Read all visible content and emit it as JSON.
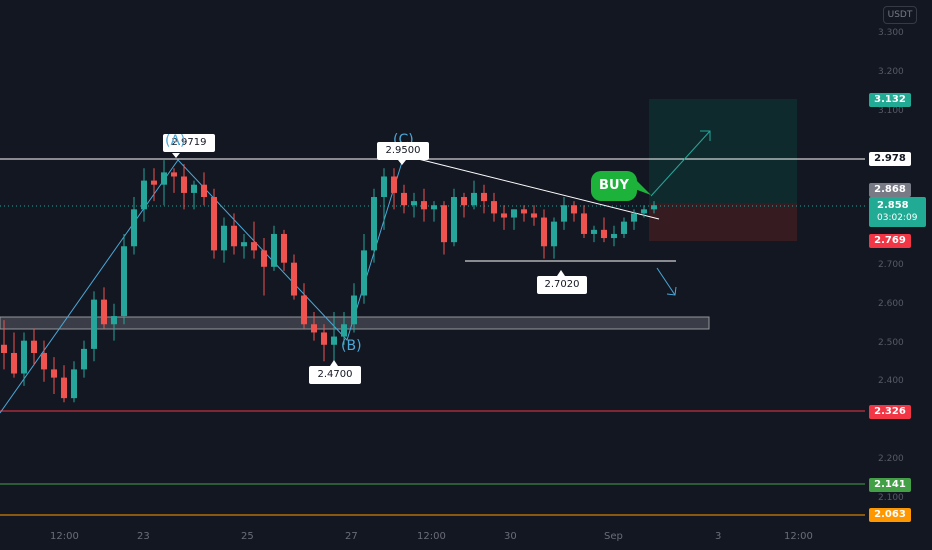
{
  "currency": "USDT",
  "y_axis_labels": [
    "3.300",
    "3.200",
    "3.100",
    "2.700",
    "2.600",
    "2.500",
    "2.400",
    "2.200",
    "2.100"
  ],
  "x_axis_labels": [
    "12:00",
    "23",
    "25",
    "27",
    "12:00",
    "30",
    "Sep",
    "3",
    "12:00"
  ],
  "price_chips": {
    "target": {
      "value": "3.132",
      "color": "#22ab94"
    },
    "resistance": {
      "value": "2.978",
      "color": "#ffffff"
    },
    "entry": {
      "value": "2.868",
      "color": "#787b86"
    },
    "current": {
      "value": "2.858",
      "countdown": "03:02:09",
      "color": "#22ab94"
    },
    "stop": {
      "value": "2.769",
      "color": "#f23645"
    },
    "support_red": {
      "value": "2.326",
      "color": "#f23645"
    },
    "support_green": {
      "value": "2.141",
      "color": "#43a047"
    },
    "support_orange": {
      "value": "2.063",
      "color": "#ff9800"
    }
  },
  "annotations": {
    "wave_a": "(A)",
    "wave_a_price": "2.9719",
    "wave_b": "(B)",
    "wave_b_price": "2.4700",
    "wave_c": "(C)",
    "wave_c_price": "2.9500",
    "low_price": "2.7020",
    "buy_label": "BUY"
  },
  "colors": {
    "bull": "#26a69a",
    "bear": "#ef5350",
    "background": "#131722"
  },
  "chart_data": {
    "type": "candlestick",
    "y_range": [
      2.02,
      3.36
    ],
    "horizontal_lines": [
      2.978,
      2.326,
      2.141,
      2.063
    ],
    "candles": [
      [
        2.52,
        2.58,
        2.46,
        2.5
      ],
      [
        2.5,
        2.55,
        2.44,
        2.45
      ],
      [
        2.45,
        2.55,
        2.42,
        2.53
      ],
      [
        2.53,
        2.56,
        2.47,
        2.5
      ],
      [
        2.5,
        2.53,
        2.43,
        2.46
      ],
      [
        2.46,
        2.49,
        2.4,
        2.44
      ],
      [
        2.44,
        2.47,
        2.38,
        2.39
      ],
      [
        2.39,
        2.48,
        2.38,
        2.46
      ],
      [
        2.46,
        2.53,
        2.44,
        2.51
      ],
      [
        2.51,
        2.65,
        2.48,
        2.63
      ],
      [
        2.63,
        2.66,
        2.56,
        2.57
      ],
      [
        2.57,
        2.62,
        2.53,
        2.59
      ],
      [
        2.59,
        2.79,
        2.57,
        2.76
      ],
      [
        2.76,
        2.88,
        2.74,
        2.85
      ],
      [
        2.85,
        2.95,
        2.82,
        2.92
      ],
      [
        2.92,
        2.95,
        2.87,
        2.91
      ],
      [
        2.91,
        2.97,
        2.86,
        2.94
      ],
      [
        2.94,
        2.95,
        2.89,
        2.93
      ],
      [
        2.93,
        2.96,
        2.85,
        2.89
      ],
      [
        2.89,
        2.92,
        2.85,
        2.91
      ],
      [
        2.91,
        2.94,
        2.86,
        2.88
      ],
      [
        2.88,
        2.9,
        2.73,
        2.75
      ],
      [
        2.75,
        2.83,
        2.72,
        2.81
      ],
      [
        2.81,
        2.84,
        2.74,
        2.76
      ],
      [
        2.76,
        2.79,
        2.73,
        2.77
      ],
      [
        2.77,
        2.82,
        2.73,
        2.75
      ],
      [
        2.75,
        2.78,
        2.64,
        2.71
      ],
      [
        2.71,
        2.81,
        2.7,
        2.79
      ],
      [
        2.79,
        2.8,
        2.7,
        2.72
      ],
      [
        2.72,
        2.74,
        2.63,
        2.64
      ],
      [
        2.64,
        2.67,
        2.56,
        2.57
      ],
      [
        2.57,
        2.6,
        2.53,
        2.55
      ],
      [
        2.55,
        2.57,
        2.48,
        2.52
      ],
      [
        2.52,
        2.6,
        2.48,
        2.54
      ],
      [
        2.54,
        2.6,
        2.52,
        2.57
      ],
      [
        2.57,
        2.67,
        2.55,
        2.64
      ],
      [
        2.64,
        2.79,
        2.62,
        2.75
      ],
      [
        2.75,
        2.9,
        2.72,
        2.88
      ],
      [
        2.88,
        2.95,
        2.8,
        2.93
      ],
      [
        2.93,
        2.95,
        2.85,
        2.89
      ],
      [
        2.89,
        2.91,
        2.84,
        2.86
      ],
      [
        2.86,
        2.89,
        2.83,
        2.87
      ],
      [
        2.87,
        2.9,
        2.82,
        2.85
      ],
      [
        2.85,
        2.87,
        2.82,
        2.86
      ],
      [
        2.86,
        2.87,
        2.74,
        2.77
      ],
      [
        2.77,
        2.9,
        2.76,
        2.88
      ],
      [
        2.88,
        2.89,
        2.83,
        2.86
      ],
      [
        2.86,
        2.92,
        2.85,
        2.89
      ],
      [
        2.89,
        2.91,
        2.84,
        2.87
      ],
      [
        2.87,
        2.89,
        2.82,
        2.84
      ],
      [
        2.84,
        2.86,
        2.8,
        2.83
      ],
      [
        2.83,
        2.85,
        2.8,
        2.85
      ],
      [
        2.85,
        2.86,
        2.82,
        2.84
      ],
      [
        2.84,
        2.86,
        2.81,
        2.83
      ],
      [
        2.83,
        2.85,
        2.73,
        2.76
      ],
      [
        2.76,
        2.83,
        2.73,
        2.82
      ],
      [
        2.82,
        2.88,
        2.8,
        2.86
      ],
      [
        2.86,
        2.87,
        2.82,
        2.84
      ],
      [
        2.84,
        2.86,
        2.78,
        2.79
      ],
      [
        2.79,
        2.81,
        2.77,
        2.8
      ],
      [
        2.8,
        2.83,
        2.77,
        2.78
      ],
      [
        2.78,
        2.81,
        2.76,
        2.79
      ],
      [
        2.79,
        2.83,
        2.78,
        2.82
      ],
      [
        2.82,
        2.85,
        2.8,
        2.84
      ],
      [
        2.84,
        2.86,
        2.83,
        2.85
      ],
      [
        2.85,
        2.87,
        2.84,
        2.86
      ]
    ]
  }
}
